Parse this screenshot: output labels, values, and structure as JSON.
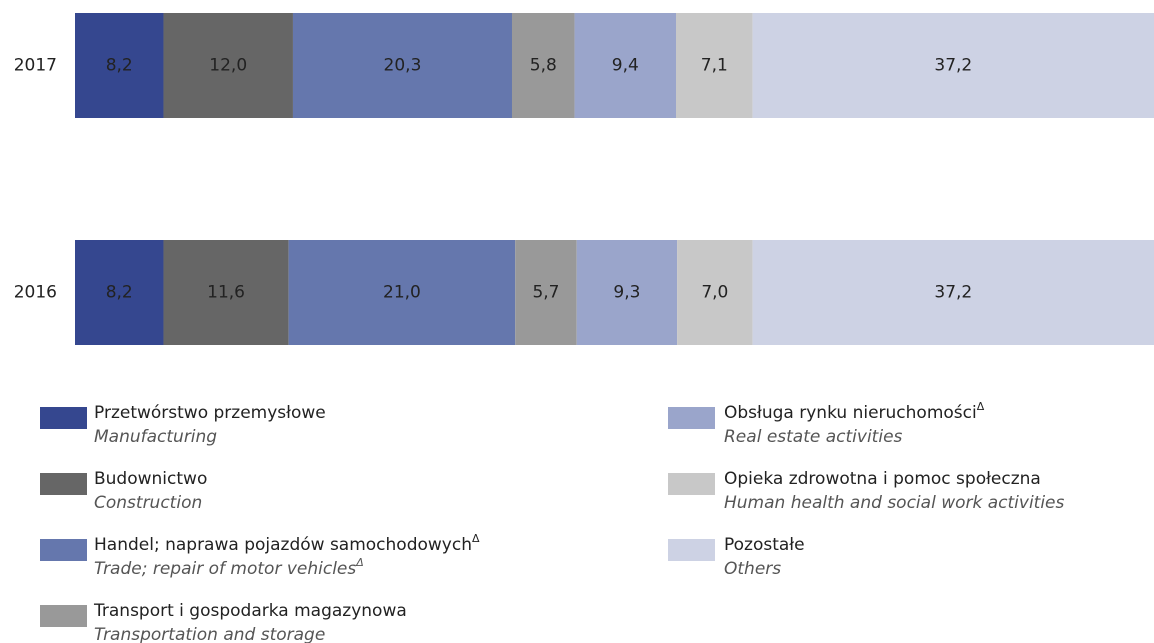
{
  "chart_data": {
    "type": "stacked-bar-horizontal",
    "categories": [
      "2017",
      "2016"
    ],
    "xlim": [
      0,
      100
    ],
    "series": [
      {
        "name": "Przetwórstwo przemysłowe",
        "name_en": "Manufacturing",
        "color": "#35478f",
        "values": [
          8.2,
          8.2
        ],
        "value_labels": [
          "8,2",
          "8,2"
        ]
      },
      {
        "name": "Budownictwo",
        "name_en": "Construction",
        "color": "#666666",
        "values": [
          12.0,
          11.6
        ],
        "value_labels": [
          "12,0",
          "11,6"
        ]
      },
      {
        "name": "Handel; naprawa pojazdów samochodowych",
        "name_sup": "Δ",
        "name_en": "Trade; repair of motor vehicles",
        "name_en_sup": "Δ",
        "color": "#6577ad",
        "values": [
          20.3,
          21.0
        ],
        "value_labels": [
          "20,3",
          "21,0"
        ]
      },
      {
        "name": "Transport i gospodarka magazynowa",
        "name_en": "Transportation and storage",
        "color": "#999999",
        "values": [
          5.8,
          5.7
        ],
        "value_labels": [
          "5,8",
          "5,7"
        ]
      },
      {
        "name": "Obsługa rynku nieruchomości",
        "name_sup": "Δ",
        "name_en": "Real estate activities",
        "color": "#9aa5cb",
        "values": [
          9.4,
          9.3
        ],
        "value_labels": [
          "9,4",
          "9,3"
        ]
      },
      {
        "name": "Opieka zdrowotna i pomoc społeczna",
        "name_en": "Human health and social work activities",
        "color": "#c8c8c8",
        "values": [
          7.1,
          7.0
        ],
        "value_labels": [
          "7,1",
          "7,0"
        ]
      },
      {
        "name": "Pozostałe",
        "name_en": "Others",
        "color": "#cdd2e4",
        "values": [
          37.2,
          37.2
        ],
        "value_labels": [
          "37,2",
          "37,2"
        ]
      }
    ]
  }
}
